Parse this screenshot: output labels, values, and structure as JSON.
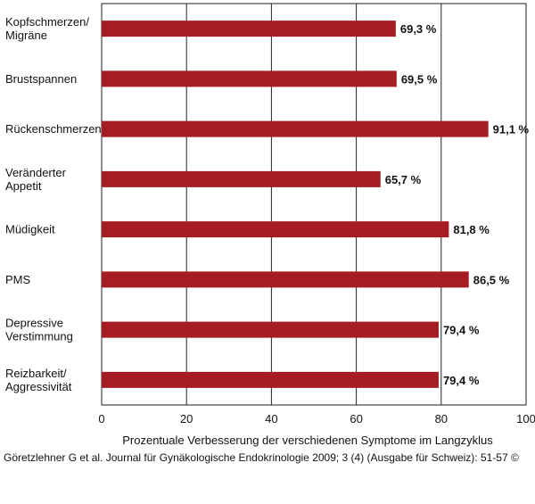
{
  "chart_data": {
    "type": "bar",
    "orientation": "horizontal",
    "categories": [
      [
        "Kopfschmerzen/",
        "Migräne"
      ],
      [
        "Brustspannen"
      ],
      [
        "Rückenschmerzen"
      ],
      [
        "Veränderter",
        "Appetit"
      ],
      [
        "Müdigkeit"
      ],
      [
        "PMS"
      ],
      [
        "Depressive",
        "Verstimmung"
      ],
      [
        "Reizbarkeit/",
        "Aggressivität"
      ]
    ],
    "values": [
      69.3,
      69.5,
      91.1,
      65.7,
      81.8,
      86.5,
      79.4,
      79.4
    ],
    "value_labels": [
      "69,3 %",
      "69,5 %",
      "91,1 %",
      "65,7 %",
      "81,8 %",
      "86,5 %",
      "79,4 %",
      "79,4 %"
    ],
    "xlabel": "Prozentuale Verbesserung der verschiedenen Symptome im Langzyklus",
    "xlim": [
      0,
      100
    ],
    "xticks": [
      0,
      20,
      40,
      60,
      80,
      100
    ],
    "grid": true,
    "bar_color": "#a51d23"
  },
  "citation": "Göretzlehner G  et al. Journal für Gynäkologische Endokrinologie 2009; 3 (4) (Ausgabe für Schweiz): 51-57 ©"
}
